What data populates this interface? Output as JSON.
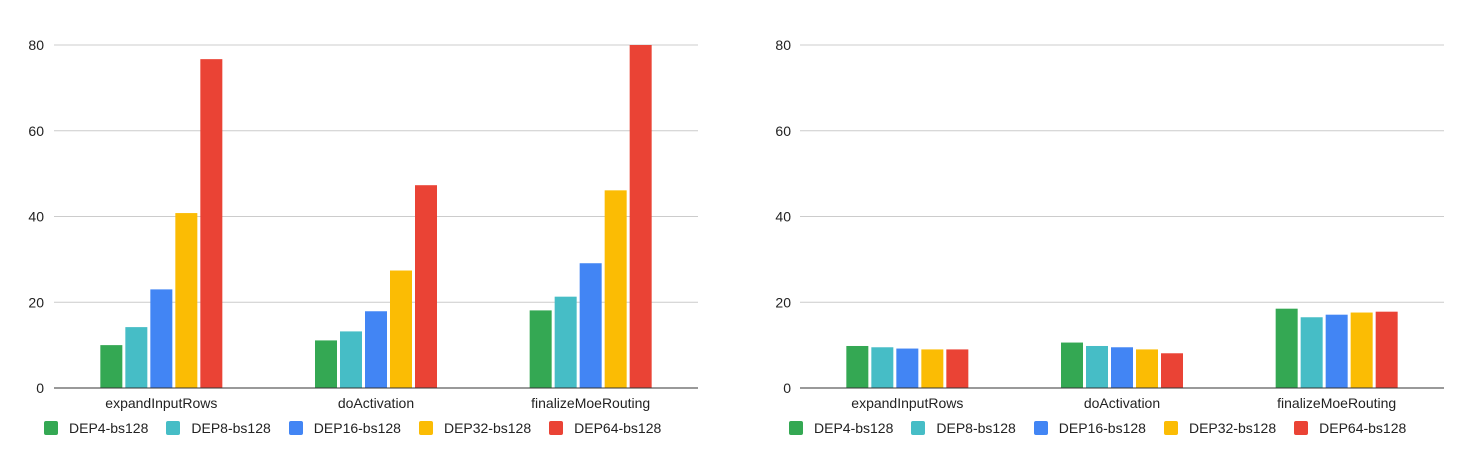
{
  "chart_data": [
    {
      "type": "bar",
      "categories": [
        "expandInputRows",
        "doActivation",
        "finalizeMoeRouting"
      ],
      "series": [
        {
          "name": "DEP4-bs128",
          "color": "#34a853",
          "values": [
            10.0,
            11.1,
            18.1
          ]
        },
        {
          "name": "DEP8-bs128",
          "color": "#46bdc6",
          "values": [
            14.2,
            13.2,
            21.3
          ]
        },
        {
          "name": "DEP16-bs128",
          "color": "#4285f4",
          "values": [
            23.0,
            17.9,
            29.1
          ]
        },
        {
          "name": "DEP32-bs128",
          "color": "#fbbc04",
          "values": [
            40.8,
            27.4,
            46.1
          ]
        },
        {
          "name": "DEP64-bs128",
          "color": "#ea4335",
          "values": [
            76.7,
            47.3,
            80.0
          ]
        }
      ],
      "yticks": [
        0,
        20,
        40,
        60,
        80
      ],
      "ylim": [
        0,
        80
      ],
      "grid": true,
      "legend_position": "bottom-left"
    },
    {
      "type": "bar",
      "categories": [
        "expandInputRows",
        "doActivation",
        "finalizeMoeRouting"
      ],
      "series": [
        {
          "name": "DEP4-bs128",
          "color": "#34a853",
          "values": [
            9.8,
            10.6,
            18.5
          ]
        },
        {
          "name": "DEP8-bs128",
          "color": "#46bdc6",
          "values": [
            9.5,
            9.8,
            16.5
          ]
        },
        {
          "name": "DEP16-bs128",
          "color": "#4285f4",
          "values": [
            9.2,
            9.5,
            17.1
          ]
        },
        {
          "name": "DEP32-bs128",
          "color": "#fbbc04",
          "values": [
            9.0,
            9.0,
            17.6
          ]
        },
        {
          "name": "DEP64-bs128",
          "color": "#ea4335",
          "values": [
            9.0,
            8.1,
            17.8
          ]
        }
      ],
      "yticks": [
        0,
        20,
        40,
        60,
        80
      ],
      "ylim": [
        0,
        80
      ],
      "grid": true,
      "legend_position": "bottom-left"
    }
  ]
}
